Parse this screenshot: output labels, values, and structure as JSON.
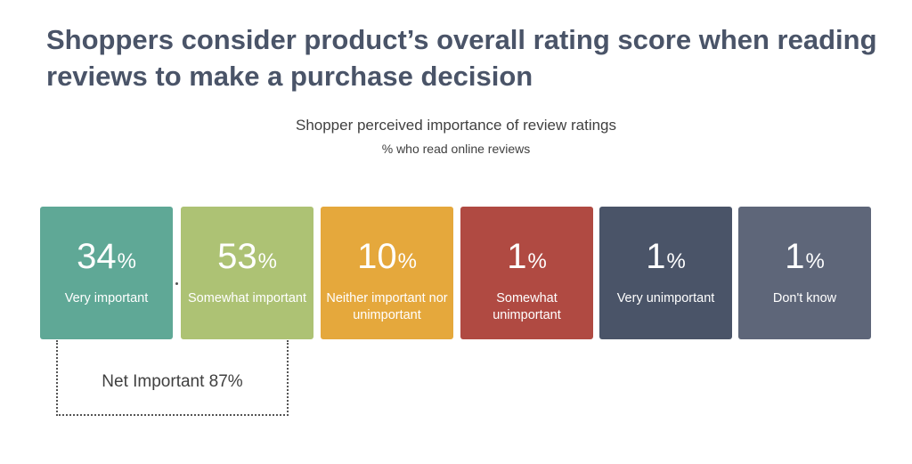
{
  "headline": "Shoppers consider product’s overall rating score when reading reviews to make a purchase decision",
  "chart_data": {
    "type": "table",
    "title": "Shopper perceived importance of review ratings",
    "subtitle": "% who read online reviews",
    "unit": "%",
    "categories": [
      "Very important",
      "Somewhat important",
      "Neither important nor unimportant",
      "Somewhat unimportant",
      "Very unimportant",
      "Don't know"
    ],
    "tiles": [
      {
        "value": "34",
        "unit": "%",
        "label": "Very important",
        "color": "#5fa896"
      },
      {
        "value": "53",
        "unit": "%",
        "label": "Somewhat important",
        "color": "#adc274"
      },
      {
        "value": "10",
        "unit": "%",
        "label": "Neither important nor unimportant",
        "color": "#e5a83c"
      },
      {
        "value": "1",
        "unit": "%",
        "label": "Somewhat unimportant",
        "color": "#b04a42"
      },
      {
        "value": "1",
        "unit": "%",
        "label": "Very unimportant",
        "color": "#4a5468"
      },
      {
        "value": "1",
        "unit": "%",
        "label": "Don't know",
        "color": "#5e6679"
      }
    ],
    "values": [
      34,
      53,
      10,
      1,
      1,
      1
    ],
    "annotation": "Net Important 87%"
  }
}
